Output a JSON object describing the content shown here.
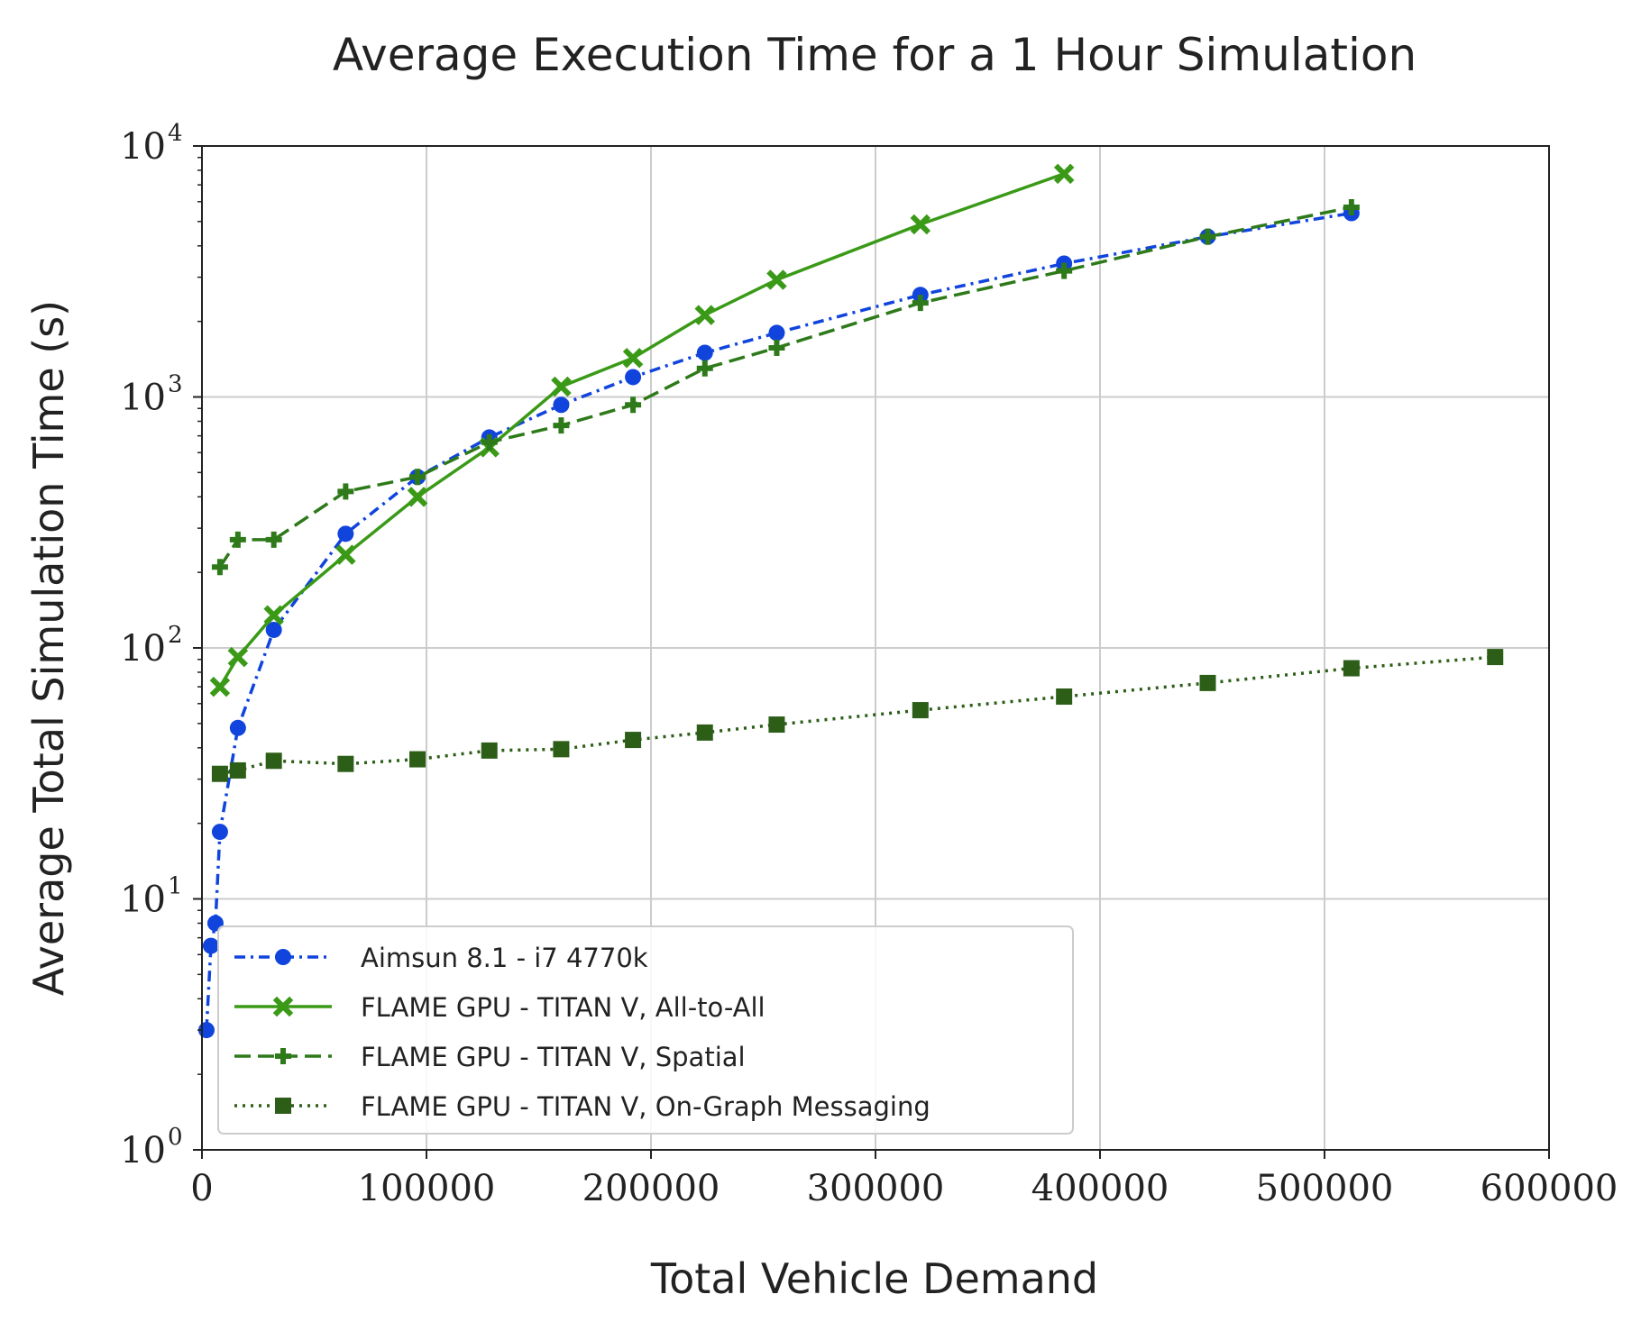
{
  "chart_data": {
    "type": "line",
    "title": "Average Execution Time for a 1 Hour Simulation",
    "xlabel": "Total Vehicle Demand",
    "ylabel": "Average Total Simulation Time (s)",
    "xlim": [
      0,
      600000
    ],
    "ylim": [
      1,
      10000
    ],
    "yscale": "log",
    "grid": true,
    "legend_position": "lower-left",
    "x_ticks": [
      "0",
      "100000",
      "200000",
      "300000",
      "400000",
      "500000",
      "600000"
    ],
    "y_ticks": [
      {
        "value": 1,
        "base": "10",
        "exp": "0"
      },
      {
        "value": 10,
        "base": "10",
        "exp": "1"
      },
      {
        "value": 100,
        "base": "10",
        "exp": "2"
      },
      {
        "value": 1000,
        "base": "10",
        "exp": "3"
      },
      {
        "value": 10000,
        "base": "10",
        "exp": "4"
      }
    ],
    "series": [
      {
        "name": "Aimsun 8.1 - i7 4770k",
        "color": "#1044dd",
        "linestyle": "dashdot",
        "marker": "circle",
        "x": [
          2000,
          4000,
          6000,
          8000,
          16000,
          32000,
          64000,
          96000,
          128000,
          160000,
          192000,
          224000,
          256000,
          320000,
          384000,
          448000,
          512000
        ],
        "y": [
          3,
          6.5,
          8,
          18.5,
          48,
          118,
          285,
          480,
          690,
          930,
          1200,
          1500,
          1800,
          2550,
          3400,
          4350,
          5400
        ]
      },
      {
        "name": "FLAME GPU - TITAN V, All-to-All",
        "color": "#3a9a17",
        "linestyle": "solid",
        "marker": "x",
        "x": [
          8000,
          16000,
          32000,
          64000,
          96000,
          128000,
          160000,
          192000,
          224000,
          256000,
          320000,
          384000
        ],
        "y": [
          70,
          92,
          135,
          235,
          400,
          630,
          1100,
          1430,
          2120,
          2930,
          4870,
          7750
        ]
      },
      {
        "name": "FLAME GPU - TITAN V, Spatial",
        "color": "#2e7a1a",
        "linestyle": "dashed",
        "marker": "plus",
        "x": [
          8000,
          16000,
          32000,
          64000,
          96000,
          128000,
          160000,
          192000,
          224000,
          256000,
          320000,
          384000,
          448000,
          512000
        ],
        "y": [
          210,
          270,
          270,
          420,
          480,
          660,
          770,
          930,
          1300,
          1570,
          2370,
          3180,
          4350,
          5700
        ]
      },
      {
        "name": "FLAME GPU - TITAN V, On-Graph Messaging",
        "color": "#2d5e18",
        "linestyle": "dotted",
        "marker": "square",
        "x": [
          8000,
          16000,
          32000,
          64000,
          96000,
          128000,
          160000,
          192000,
          224000,
          256000,
          320000,
          384000,
          448000,
          512000,
          576000
        ],
        "y": [
          31.5,
          32.5,
          35.5,
          34.5,
          36,
          39,
          39.5,
          43,
          46,
          49.5,
          56.5,
          64,
          72.5,
          83,
          92
        ]
      }
    ]
  }
}
